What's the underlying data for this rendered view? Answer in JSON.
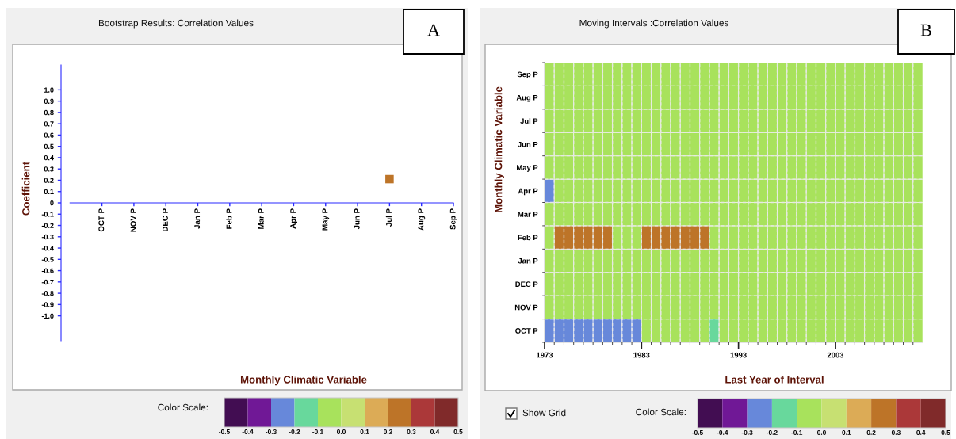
{
  "chart_data": [
    {
      "type": "scatter",
      "title": "Bootstrap Results: Correlation Values",
      "xlabel": "Monthly Climatic Variable",
      "ylabel": "Coefficient",
      "clabel": "Color Scale:",
      "categories": [
        "OCT P",
        "NOV P",
        "DEC P",
        "Jan P",
        "Feb P",
        "Mar P",
        "Apr P",
        "May P",
        "Jun P",
        "Jul P",
        "Aug P",
        "Sep P"
      ],
      "values": [
        null,
        null,
        null,
        null,
        null,
        null,
        null,
        null,
        null,
        0.21,
        null,
        null
      ],
      "cvalues": [
        null,
        null,
        null,
        null,
        null,
        null,
        null,
        null,
        null,
        0.21,
        null,
        null
      ],
      "marker": "square",
      "ylim": [
        -1.22,
        1.22
      ],
      "yticks": [
        {
          "value": 1,
          "label": "1.0"
        },
        0.9,
        0.8,
        0.7,
        0.6,
        0.5,
        0.4,
        0.3,
        0.2,
        0.1,
        0,
        -0.1,
        -0.2,
        -0.3,
        -0.4,
        -0.5,
        -0.6,
        -0.7,
        -0.8,
        -0.9,
        {
          "value": -1,
          "label": "-1.0"
        }
      ],
      "clim": [
        -0.5,
        0.5
      ],
      "cticks": [
        -0.5,
        -0.4,
        -0.3,
        -0.2,
        -0.1,
        {
          "value": 0,
          "label": "0.0"
        },
        0.1,
        0.2,
        0.3,
        0.4,
        0.5
      ],
      "annotations": [
        "A"
      ]
    },
    {
      "type": "heatmap",
      "title": "Moving Intervals :Correlation Values",
      "xlabel": "Last Year of Interval",
      "ylabel": "Monthly Climatic Variable",
      "clabel": "Color Scale:",
      "x": [
        1973.5,
        1974.5,
        1975.5,
        1976.5,
        1977.5,
        1978.5,
        1979.5,
        1980.5,
        1981.5,
        1982.5,
        1983.5,
        1984.5,
        1985.5,
        1986.5,
        1987.5,
        1988.5,
        1989.5,
        1990.5,
        1991.5,
        1992.5,
        1993.5,
        1994.5,
        1995.5,
        1996.5,
        1997.5,
        1998.5,
        1999.5,
        2000.5,
        2001.5,
        2002.5,
        2003.5,
        2004.5,
        2005.5,
        2006.5,
        2007.5,
        2008.5,
        2009.5,
        2010.5,
        2011.5
      ],
      "xlim": [
        1973,
        2012
      ],
      "xticks": [
        1973,
        {
          "value": 1974,
          "label": null
        },
        {
          "value": 1975,
          "label": null
        },
        {
          "value": 1976,
          "label": null
        },
        {
          "value": 1977,
          "label": null
        },
        {
          "value": 1978,
          "label": null
        },
        {
          "value": 1979,
          "label": null
        },
        {
          "value": 1980,
          "label": null
        },
        {
          "value": 1981,
          "label": null
        },
        {
          "value": 1982,
          "label": null
        },
        1983,
        {
          "value": 1984,
          "label": null
        },
        {
          "value": 1985,
          "label": null
        },
        {
          "value": 1986,
          "label": null
        },
        {
          "value": 1987,
          "label": null
        },
        {
          "value": 1988,
          "label": null
        },
        {
          "value": 1989,
          "label": null
        },
        {
          "value": 1990,
          "label": null
        },
        {
          "value": 1991,
          "label": null
        },
        {
          "value": 1992,
          "label": null
        },
        1993,
        {
          "value": 1994,
          "label": null
        },
        {
          "value": 1995,
          "label": null
        },
        {
          "value": 1996,
          "label": null
        },
        {
          "value": 1997,
          "label": null
        },
        {
          "value": 1998,
          "label": null
        },
        {
          "value": 1999,
          "label": null
        },
        {
          "value": 2000,
          "label": null
        },
        {
          "value": 2001,
          "label": null
        },
        {
          "value": 2002,
          "label": null
        },
        2003,
        {
          "value": 2004,
          "label": null
        },
        {
          "value": 2005,
          "label": null
        },
        {
          "value": 2006,
          "label": null
        },
        {
          "value": 2007,
          "label": null
        },
        {
          "value": 2008,
          "label": null
        },
        {
          "value": 2009,
          "label": null
        },
        {
          "value": 2010,
          "label": null
        },
        {
          "value": 2011,
          "label": null
        }
      ],
      "y_categories": [
        "Sep P",
        "Aug P",
        "Jul P",
        "Jun P",
        "May P",
        "Apr P",
        "Mar P",
        "Feb P",
        "Jan P",
        "DEC P",
        "NOV P",
        "OCT P"
      ],
      "cells": [
        [
          -0.05,
          -0.05,
          -0.05,
          -0.05,
          -0.05,
          -0.05,
          -0.05,
          -0.05,
          -0.05,
          -0.05,
          -0.05,
          -0.05,
          -0.05,
          -0.05,
          -0.05,
          -0.05,
          -0.05,
          -0.05,
          -0.05,
          -0.05,
          -0.05,
          -0.05,
          -0.05,
          -0.05,
          -0.05,
          -0.05,
          -0.05,
          -0.05,
          -0.05,
          -0.05,
          -0.05,
          -0.05,
          -0.05,
          -0.05,
          -0.05,
          -0.05,
          -0.05,
          -0.05,
          -0.05
        ],
        [
          -0.05,
          -0.05,
          -0.05,
          -0.05,
          -0.05,
          -0.05,
          -0.05,
          -0.05,
          -0.05,
          -0.05,
          -0.05,
          -0.05,
          -0.05,
          -0.05,
          -0.05,
          -0.05,
          -0.05,
          -0.05,
          -0.05,
          -0.05,
          -0.05,
          -0.05,
          -0.05,
          -0.05,
          -0.05,
          -0.05,
          -0.05,
          -0.05,
          -0.05,
          -0.05,
          -0.05,
          -0.05,
          -0.05,
          -0.05,
          -0.05,
          -0.05,
          -0.05,
          -0.05,
          -0.05
        ],
        [
          -0.05,
          -0.05,
          -0.05,
          -0.05,
          -0.05,
          -0.05,
          -0.05,
          -0.05,
          -0.05,
          -0.05,
          -0.05,
          -0.05,
          -0.05,
          -0.05,
          -0.05,
          -0.05,
          -0.05,
          -0.05,
          -0.05,
          -0.05,
          -0.05,
          -0.05,
          -0.05,
          -0.05,
          -0.05,
          -0.05,
          -0.05,
          -0.05,
          -0.05,
          -0.05,
          -0.05,
          -0.05,
          -0.05,
          -0.05,
          -0.05,
          -0.05,
          -0.05,
          -0.05,
          -0.05
        ],
        [
          -0.05,
          -0.05,
          -0.05,
          -0.05,
          -0.05,
          -0.05,
          -0.05,
          -0.05,
          -0.05,
          -0.05,
          -0.05,
          -0.05,
          -0.05,
          -0.05,
          -0.05,
          -0.05,
          -0.05,
          -0.05,
          -0.05,
          -0.05,
          -0.05,
          -0.05,
          -0.05,
          -0.05,
          -0.05,
          -0.05,
          -0.05,
          -0.05,
          -0.05,
          -0.05,
          -0.05,
          -0.05,
          -0.05,
          -0.05,
          -0.05,
          -0.05,
          -0.05,
          -0.05,
          -0.05
        ],
        [
          -0.05,
          -0.05,
          -0.05,
          -0.05,
          -0.05,
          -0.05,
          -0.05,
          -0.05,
          -0.05,
          -0.05,
          -0.05,
          -0.05,
          -0.05,
          -0.05,
          -0.05,
          -0.05,
          -0.05,
          -0.05,
          -0.05,
          -0.05,
          -0.05,
          -0.05,
          -0.05,
          -0.05,
          -0.05,
          -0.05,
          -0.05,
          -0.05,
          -0.05,
          -0.05,
          -0.05,
          -0.05,
          -0.05,
          -0.05,
          -0.05,
          -0.05,
          -0.05,
          -0.05,
          -0.05
        ],
        [
          -0.25,
          -0.05,
          -0.05,
          -0.05,
          -0.05,
          -0.05,
          -0.05,
          -0.05,
          -0.05,
          -0.05,
          -0.05,
          -0.05,
          -0.05,
          -0.05,
          -0.05,
          -0.05,
          -0.05,
          -0.05,
          -0.05,
          -0.05,
          -0.05,
          -0.05,
          -0.05,
          -0.05,
          -0.05,
          -0.05,
          -0.05,
          -0.05,
          -0.05,
          -0.05,
          -0.05,
          -0.05,
          -0.05,
          -0.05,
          -0.05,
          -0.05,
          -0.05,
          -0.05,
          -0.05
        ],
        [
          -0.05,
          -0.05,
          -0.05,
          -0.05,
          -0.05,
          -0.05,
          -0.05,
          -0.05,
          -0.05,
          -0.05,
          -0.05,
          -0.05,
          -0.05,
          -0.05,
          -0.05,
          -0.05,
          -0.05,
          -0.05,
          -0.05,
          -0.05,
          -0.05,
          -0.05,
          -0.05,
          -0.05,
          -0.05,
          -0.05,
          -0.05,
          -0.05,
          -0.05,
          -0.05,
          -0.05,
          -0.05,
          -0.05,
          -0.05,
          -0.05,
          -0.05,
          -0.05,
          -0.05,
          -0.05
        ],
        [
          -0.05,
          0.25,
          0.25,
          0.25,
          0.25,
          0.25,
          0.25,
          -0.05,
          -0.05,
          -0.05,
          0.25,
          0.25,
          0.25,
          0.25,
          0.25,
          0.25,
          0.25,
          -0.05,
          -0.05,
          -0.05,
          -0.05,
          -0.05,
          -0.05,
          -0.05,
          -0.05,
          -0.05,
          -0.05,
          -0.05,
          -0.05,
          -0.05,
          -0.05,
          -0.05,
          -0.05,
          -0.05,
          -0.05,
          -0.05,
          -0.05,
          -0.05,
          -0.05
        ],
        [
          -0.05,
          -0.05,
          -0.05,
          -0.05,
          -0.05,
          -0.05,
          -0.05,
          -0.05,
          -0.05,
          -0.05,
          -0.05,
          -0.05,
          -0.05,
          -0.05,
          -0.05,
          -0.05,
          -0.05,
          -0.05,
          -0.05,
          -0.05,
          -0.05,
          -0.05,
          -0.05,
          -0.05,
          -0.05,
          -0.05,
          -0.05,
          -0.05,
          -0.05,
          -0.05,
          -0.05,
          -0.05,
          -0.05,
          -0.05,
          -0.05,
          -0.05,
          -0.05,
          -0.05,
          -0.05
        ],
        [
          -0.05,
          -0.05,
          -0.05,
          -0.05,
          -0.05,
          -0.05,
          -0.05,
          -0.05,
          -0.05,
          -0.05,
          -0.05,
          -0.05,
          -0.05,
          -0.05,
          -0.05,
          -0.05,
          -0.05,
          -0.05,
          -0.05,
          -0.05,
          -0.05,
          -0.05,
          -0.05,
          -0.05,
          -0.05,
          -0.05,
          -0.05,
          -0.05,
          -0.05,
          -0.05,
          -0.05,
          -0.05,
          -0.05,
          -0.05,
          -0.05,
          -0.05,
          -0.05,
          -0.05,
          -0.05
        ],
        [
          -0.05,
          -0.05,
          -0.05,
          -0.05,
          -0.05,
          -0.05,
          -0.05,
          -0.05,
          -0.05,
          -0.05,
          -0.05,
          -0.05,
          -0.05,
          -0.05,
          -0.05,
          -0.05,
          -0.05,
          -0.05,
          -0.05,
          -0.05,
          -0.05,
          -0.05,
          -0.05,
          -0.05,
          -0.05,
          -0.05,
          -0.05,
          -0.05,
          -0.05,
          -0.05,
          -0.05,
          -0.05,
          -0.05,
          -0.05,
          -0.05,
          -0.05,
          -0.05,
          -0.05,
          -0.05
        ],
        [
          -0.25,
          -0.25,
          -0.25,
          -0.25,
          -0.25,
          -0.25,
          -0.25,
          -0.25,
          -0.25,
          -0.25,
          -0.05,
          -0.05,
          -0.05,
          -0.05,
          -0.05,
          -0.05,
          -0.05,
          -0.15,
          -0.05,
          -0.05,
          -0.05,
          -0.05,
          -0.05,
          -0.05,
          -0.05,
          -0.05,
          -0.05,
          -0.05,
          -0.05,
          -0.05,
          -0.05,
          -0.05,
          -0.05,
          -0.05,
          -0.05,
          -0.05,
          -0.05,
          -0.05,
          -0.05
        ]
      ],
      "clim": [
        -0.5,
        0.5
      ],
      "cticks": [
        -0.5,
        -0.4,
        -0.3,
        -0.2,
        -0.1,
        {
          "value": 0,
          "label": "0.0"
        },
        0.1,
        0.2,
        0.3,
        0.4,
        0.5
      ],
      "grid": true,
      "annotations": [
        "B",
        "Show Grid"
      ]
    }
  ]
}
